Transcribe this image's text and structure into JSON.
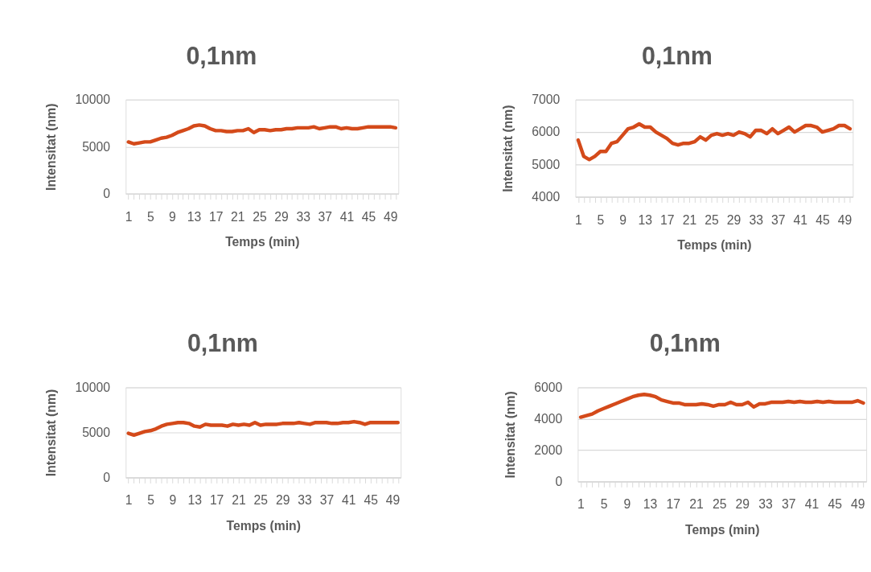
{
  "chart_data": [
    {
      "type": "line",
      "title": "0,1nm",
      "xlabel": "Temps (min)",
      "ylabel": "Intensitat (nm)",
      "grid": "y",
      "ylim": [
        0,
        10000
      ],
      "yticks": [
        0,
        5000,
        10000
      ],
      "categories": [
        "1",
        null,
        null,
        null,
        "5",
        null,
        null,
        null,
        "9",
        null,
        null,
        null,
        "13",
        null,
        null,
        null,
        "17",
        null,
        null,
        null,
        "21",
        null,
        null,
        null,
        "25",
        null,
        null,
        null,
        "29",
        null,
        null,
        null,
        "33",
        null,
        null,
        null,
        "37",
        null,
        null,
        null,
        "41",
        null,
        null,
        null,
        "45",
        null,
        null,
        null,
        "49",
        null
      ],
      "series": [
        {
          "color": "#d44a1a",
          "values": [
            5500,
            5300,
            5400,
            5500,
            5500,
            5700,
            5900,
            6000,
            6200,
            6500,
            6700,
            6900,
            7200,
            7300,
            7200,
            6900,
            6700,
            6700,
            6600,
            6600,
            6700,
            6700,
            6900,
            6500,
            6800,
            6800,
            6700,
            6800,
            6800,
            6900,
            6900,
            7000,
            7000,
            7000,
            7100,
            6900,
            7000,
            7100,
            7100,
            6900,
            7000,
            6900,
            6900,
            7000,
            7100,
            7100,
            7100,
            7100,
            7100,
            7000
          ]
        }
      ]
    },
    {
      "type": "line",
      "title": "0,1nm",
      "xlabel": "Temps (min)",
      "ylabel": "Intensitat (nm)",
      "grid": "y",
      "ylim": [
        4000,
        7000
      ],
      "yticks": [
        4000,
        5000,
        6000,
        7000
      ],
      "categories": [
        "1",
        null,
        null,
        null,
        "5",
        null,
        null,
        null,
        "9",
        null,
        null,
        null,
        "13",
        null,
        null,
        null,
        "17",
        null,
        null,
        null,
        "21",
        null,
        null,
        null,
        "25",
        null,
        null,
        null,
        "29",
        null,
        null,
        null,
        "33",
        null,
        null,
        null,
        "37",
        null,
        null,
        null,
        "41",
        null,
        null,
        null,
        "45",
        null,
        null,
        null,
        "49",
        null
      ],
      "series": [
        {
          "color": "#d44a1a",
          "values": [
            5750,
            5250,
            5150,
            5250,
            5400,
            5400,
            5650,
            5700,
            5900,
            6100,
            6150,
            6250,
            6150,
            6150,
            6000,
            5900,
            5800,
            5650,
            5600,
            5650,
            5650,
            5700,
            5850,
            5750,
            5900,
            5950,
            5900,
            5950,
            5900,
            6000,
            5950,
            5850,
            6050,
            6050,
            5950,
            6100,
            5950,
            6050,
            6150,
            6000,
            6100,
            6200,
            6200,
            6150,
            6000,
            6050,
            6100,
            6200,
            6200,
            6100
          ]
        }
      ]
    },
    {
      "type": "line",
      "title": "0,1nm",
      "xlabel": "Temps (min)",
      "ylabel": "Intensitat (nm)",
      "grid": "y",
      "ylim": [
        0,
        10000
      ],
      "yticks": [
        0,
        5000,
        10000
      ],
      "categories": [
        "1",
        null,
        null,
        null,
        "5",
        null,
        null,
        null,
        "9",
        null,
        null,
        null,
        "13",
        null,
        null,
        null,
        "17",
        null,
        null,
        null,
        "21",
        null,
        null,
        null,
        "25",
        null,
        null,
        null,
        "29",
        null,
        null,
        null,
        "33",
        null,
        null,
        null,
        "37",
        null,
        null,
        null,
        "41",
        null,
        null,
        null,
        "45",
        null,
        null,
        null,
        "49",
        null
      ],
      "series": [
        {
          "color": "#d44a1a",
          "values": [
            4900,
            4700,
            4900,
            5100,
            5200,
            5400,
            5700,
            5900,
            6000,
            6100,
            6100,
            6000,
            5700,
            5600,
            5900,
            5800,
            5800,
            5800,
            5700,
            5900,
            5800,
            5900,
            5800,
            6100,
            5800,
            5900,
            5900,
            5900,
            6000,
            6000,
            6000,
            6100,
            6000,
            5900,
            6100,
            6100,
            6100,
            6000,
            6000,
            6100,
            6100,
            6200,
            6100,
            5900,
            6100,
            6100,
            6100,
            6100,
            6100,
            6100
          ]
        }
      ]
    },
    {
      "type": "line",
      "title": "0,1nm",
      "xlabel": "Temps (min)",
      "ylabel": "Intensitat (nm)",
      "grid": "y",
      "ylim": [
        0,
        6000
      ],
      "yticks": [
        0,
        2000,
        4000,
        6000
      ],
      "categories": [
        "1",
        null,
        null,
        null,
        "5",
        null,
        null,
        null,
        "9",
        null,
        null,
        null,
        "13",
        null,
        null,
        null,
        "17",
        null,
        null,
        null,
        "21",
        null,
        null,
        null,
        "25",
        null,
        null,
        null,
        "29",
        null,
        null,
        null,
        "33",
        null,
        null,
        null,
        "37",
        null,
        null,
        null,
        "41",
        null,
        null,
        null,
        "45",
        null,
        null,
        null,
        "49",
        null
      ],
      "series": [
        {
          "color": "#d44a1a",
          "values": [
            4100,
            4200,
            4300,
            4500,
            4650,
            4800,
            4950,
            5100,
            5250,
            5400,
            5500,
            5550,
            5500,
            5400,
            5200,
            5100,
            5000,
            5000,
            4900,
            4900,
            4900,
            4950,
            4900,
            4800,
            4900,
            4900,
            5050,
            4900,
            4900,
            5050,
            4750,
            4950,
            4950,
            5050,
            5050,
            5050,
            5100,
            5050,
            5100,
            5050,
            5050,
            5100,
            5050,
            5100,
            5050,
            5050,
            5050,
            5050,
            5150,
            5000
          ]
        }
      ]
    }
  ]
}
